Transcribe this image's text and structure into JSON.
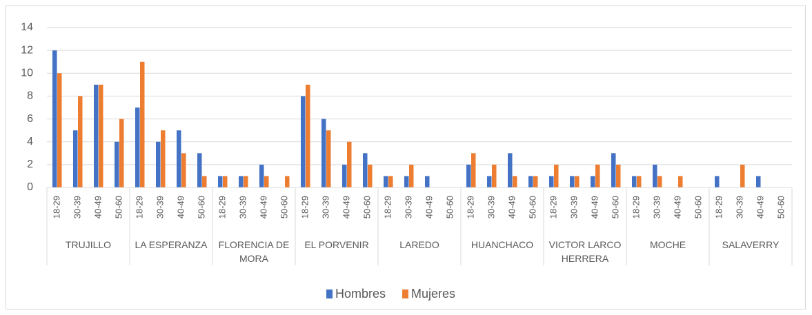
{
  "chart_data": {
    "type": "bar",
    "groups": [
      "TRUJILLO",
      "LA ESPERANZA",
      "FLORENCIA DE MORA",
      "EL PORVENIR",
      "LAREDO",
      "HUANCHACO",
      "VICTOR LARCO HERRERA",
      "MOCHE",
      "SALAVERRY"
    ],
    "categories": [
      "18-29",
      "30-39",
      "40-49",
      "50-60",
      "18-29",
      "30-39",
      "40-49",
      "50-60",
      "18-29",
      "30-39",
      "40-49",
      "50-60",
      "18-29",
      "30-39",
      "40-49",
      "50-60",
      "18-29",
      "30-39",
      "40-49",
      "50-60",
      "18-29",
      "30-39",
      "40-49",
      "50-60",
      "18-29",
      "30-39",
      "40-49",
      "50-60",
      "18-29",
      "30-39",
      "40-49",
      "50-60",
      "18-29",
      "30-39",
      "40-49",
      "50-60"
    ],
    "series": [
      {
        "name": "Hombres",
        "color": "#4472c4",
        "values": [
          12,
          5,
          9,
          4,
          7,
          4,
          5,
          3,
          1,
          1,
          2,
          0,
          8,
          6,
          2,
          3,
          1,
          1,
          1,
          0,
          2,
          1,
          3,
          1,
          1,
          1,
          1,
          3,
          1,
          2,
          0,
          0,
          1,
          0,
          1,
          0
        ]
      },
      {
        "name": "Mujeres",
        "color": "#ed7d31",
        "values": [
          10,
          8,
          9,
          6,
          11,
          5,
          3,
          1,
          1,
          1,
          1,
          1,
          9,
          5,
          4,
          2,
          1,
          2,
          0,
          0,
          3,
          2,
          1,
          1,
          2,
          1,
          2,
          2,
          1,
          1,
          1,
          0,
          0,
          2,
          0,
          0
        ]
      }
    ],
    "ylim": [
      0,
      14
    ],
    "yticks": [
      0,
      2,
      4,
      6,
      8,
      10,
      12,
      14
    ],
    "grid": true,
    "legend": "bottom"
  }
}
